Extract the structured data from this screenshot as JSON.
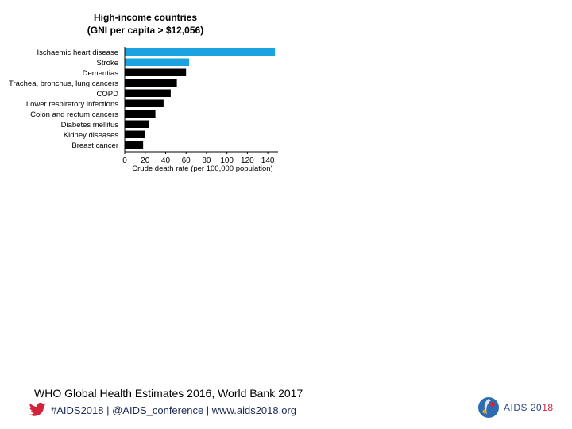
{
  "chart_data": {
    "type": "bar",
    "orientation": "horizontal",
    "title": [
      "High-income countries",
      "(GNI per capita > $12,056)"
    ],
    "categories": [
      "Ischaemic heart disease",
      "Stroke",
      "Dementias",
      "Trachea, bronchus, lung cancers",
      "COPD",
      "Lower respiratory infections",
      "Colon and rectum cancers",
      "Diabetes mellitus",
      "Kidney diseases",
      "Breast cancer"
    ],
    "values": [
      147,
      63,
      60,
      51,
      45,
      38,
      30,
      24,
      20,
      18
    ],
    "bar_colors": [
      "#1aa3e0",
      "#1aa3e0",
      "#000000",
      "#000000",
      "#000000",
      "#000000",
      "#000000",
      "#000000",
      "#000000",
      "#000000"
    ],
    "xlabel": "Crude death rate (per 100,000 population)",
    "xlim": [
      0,
      150
    ],
    "xticks": [
      0,
      20,
      40,
      60,
      80,
      100,
      120,
      140
    ],
    "grid": false
  },
  "footer": {
    "source": "WHO Global Health Estimates 2016, World Bank 2017",
    "hashtags": "#AIDS2018 | @AIDS_conference | www.aids2018.org",
    "logo_text_main": "AIDS 20",
    "logo_text_accent": "18"
  },
  "colors": {
    "highlight": "#1aa3e0",
    "bar": "#000000",
    "footer_text": "#1f2a5a",
    "twitter": "#d4223d"
  }
}
